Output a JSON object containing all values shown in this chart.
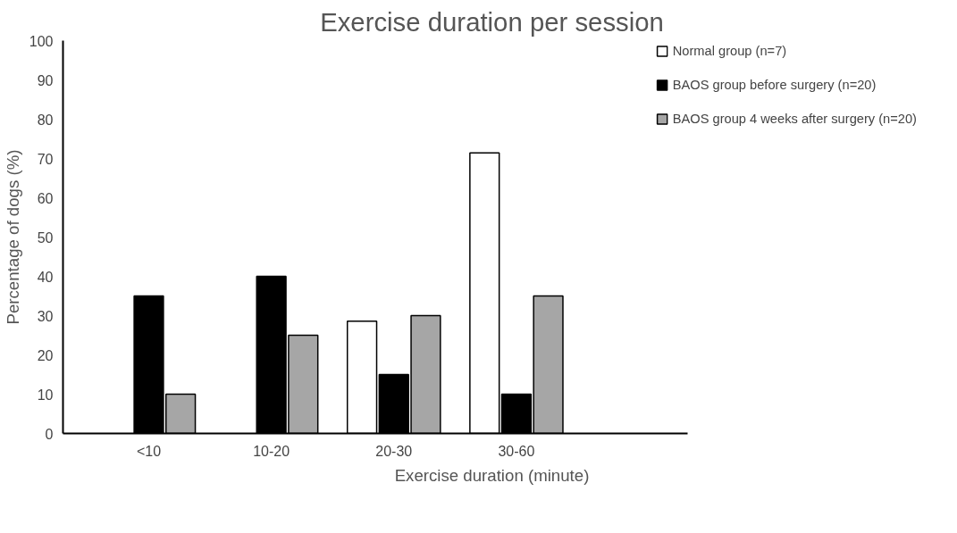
{
  "chart_data": {
    "type": "bar",
    "title": "Exercise duration per session",
    "xlabel": "Exercise duration (minute)",
    "ylabel": "Percentage of dogs (%)",
    "categories": [
      "<10",
      "10-20",
      "20-30",
      "30-60"
    ],
    "series": [
      {
        "name": "Normal group (n=7)",
        "color": "#ffffff",
        "values": [
          0,
          0,
          28.6,
          71.4
        ]
      },
      {
        "name": "BAOS group before surgery (n=20)",
        "color": "#000000",
        "values": [
          35,
          40,
          15,
          10
        ]
      },
      {
        "name": "BAOS group 4 weeks after surgery (n=20)",
        "color": "#a6a6a6",
        "values": [
          10,
          25,
          30,
          35
        ]
      }
    ],
    "ylim": [
      0,
      100
    ],
    "yticks": [
      0,
      10,
      20,
      30,
      40,
      50,
      60,
      70,
      80,
      90,
      100
    ],
    "grid": false,
    "legend": "top right"
  }
}
